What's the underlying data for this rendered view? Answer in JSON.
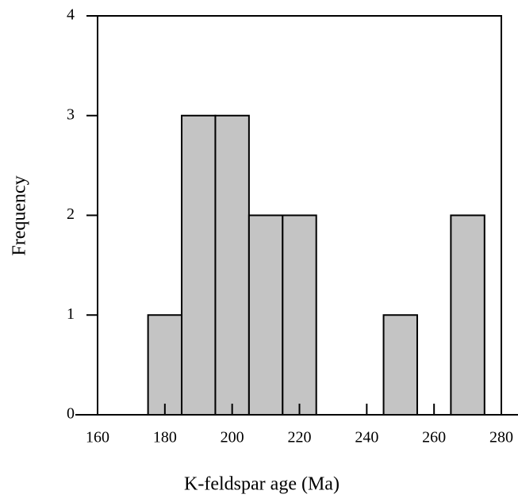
{
  "chart_data": {
    "type": "histogram",
    "x_label": "K-feldspar age (Ma)",
    "y_label": "Frequency",
    "bins": [
      175,
      185,
      195,
      205,
      215,
      225,
      235,
      245,
      255,
      265,
      275
    ],
    "values": [
      1,
      3,
      3,
      2,
      2,
      0,
      0,
      1,
      0,
      2
    ],
    "color": "#c4c4c4",
    "xlim": [
      160,
      280
    ],
    "xticks": [
      160,
      180,
      200,
      220,
      240,
      260,
      280
    ],
    "ylim": [
      0,
      4
    ],
    "yticks": [
      0,
      1,
      2,
      3,
      4
    ]
  }
}
